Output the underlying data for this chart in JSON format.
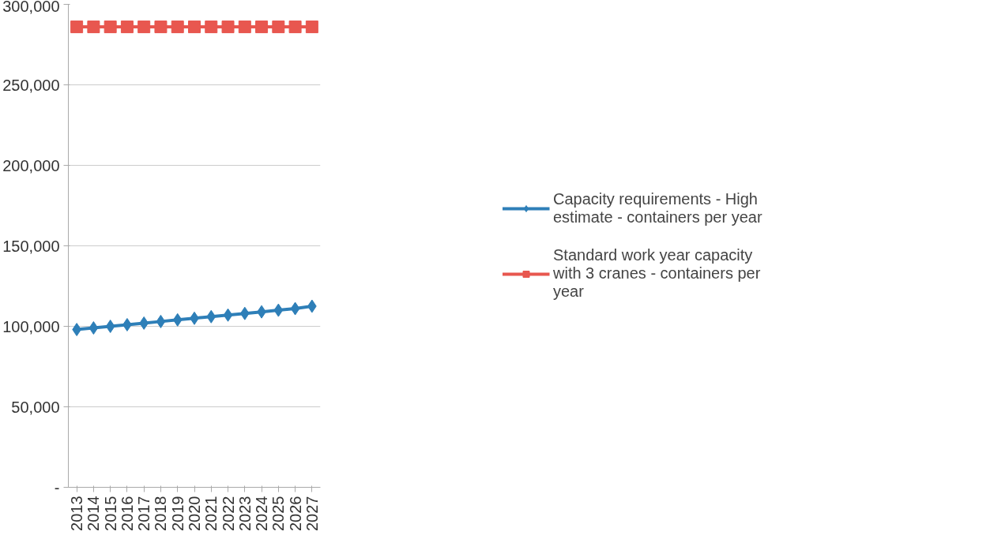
{
  "chart_data": {
    "type": "line",
    "categories": [
      "2013",
      "2014",
      "2015",
      "2016",
      "2017",
      "2018",
      "2019",
      "2020",
      "2021",
      "2022",
      "2023",
      "2024",
      "2025",
      "2026",
      "2027"
    ],
    "series": [
      {
        "name": "Capacity requirements - High estimate - containers per year",
        "color": "#2e7fb8",
        "marker": "diamond",
        "values": [
          98000,
          99000,
          100000,
          101000,
          102000,
          103000,
          104000,
          105000,
          106000,
          107000,
          108000,
          109000,
          110000,
          111000,
          112500
        ]
      },
      {
        "name": "Standard work year capacity with 3 cranes - containers per year",
        "color": "#e8574f",
        "marker": "square",
        "values": [
          286000,
          286000,
          286000,
          286000,
          286000,
          286000,
          286000,
          286000,
          286000,
          286000,
          286000,
          286000,
          286000,
          286000,
          286000
        ]
      }
    ],
    "ylim": [
      0,
      300000
    ],
    "yticks": [
      {
        "value": 0,
        "label": "-"
      },
      {
        "value": 50000,
        "label": "50,000"
      },
      {
        "value": 100000,
        "label": "100,000"
      },
      {
        "value": 150000,
        "label": "150,000"
      },
      {
        "value": 200000,
        "label": "200,000"
      },
      {
        "value": 250000,
        "label": "250,000"
      },
      {
        "value": 300000,
        "label": "300,000"
      }
    ],
    "grid": "y",
    "legend": "right",
    "line_style": "solid"
  }
}
